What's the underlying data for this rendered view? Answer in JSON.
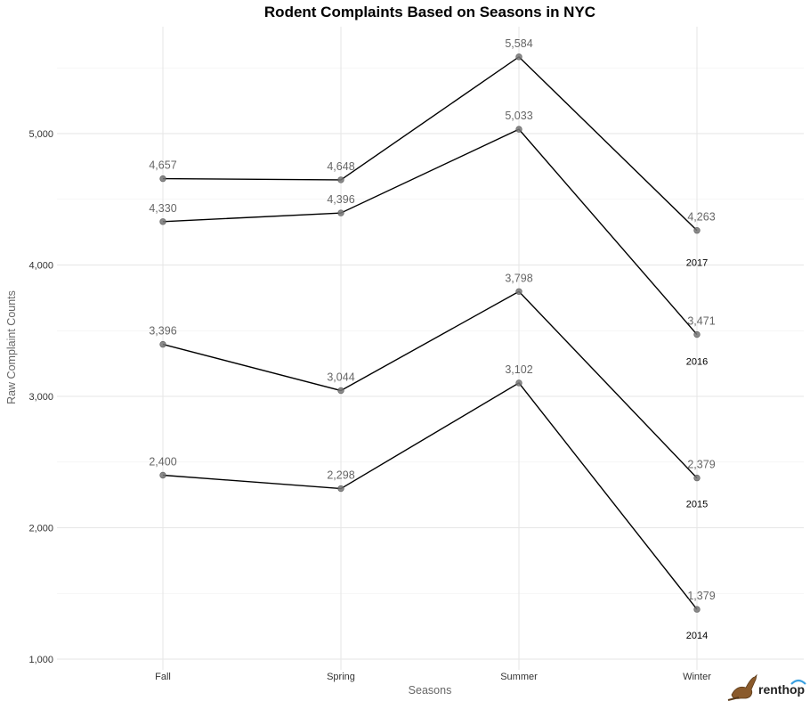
{
  "chart_data": {
    "type": "line",
    "title": "Rodent Complaints Based on Seasons in NYC",
    "xlabel": "Seasons",
    "ylabel": "Raw Complaint Counts",
    "categories": [
      "Fall",
      "Spring",
      "Summer",
      "Winter"
    ],
    "ylim": [
      1000,
      5900
    ],
    "yticks": [
      1000,
      2000,
      3000,
      4000,
      5000
    ],
    "ytick_labels": [
      "1,000",
      "2,000",
      "3,000",
      "4,000",
      "5,000"
    ],
    "grid": true,
    "series": [
      {
        "name": "2017",
        "values": [
          4657,
          4648,
          5584,
          4263
        ],
        "labels": [
          "4,657",
          "4,648",
          "5,584",
          "4,263"
        ]
      },
      {
        "name": "2016",
        "values": [
          4330,
          4396,
          5033,
          3471
        ],
        "labels": [
          "4,330",
          "4,396",
          "5,033",
          "3,471"
        ]
      },
      {
        "name": "2015",
        "values": [
          3396,
          3044,
          3798,
          2379
        ],
        "labels": [
          "3,396",
          "3,044",
          "3,798",
          "2,379"
        ]
      },
      {
        "name": "2014",
        "values": [
          2400,
          2298,
          3102,
          1379
        ],
        "labels": [
          "2,400",
          "2,298",
          "3,102",
          "1,379"
        ]
      }
    ]
  },
  "logo": {
    "text": "renthop",
    "icon": "kangaroo-icon"
  }
}
